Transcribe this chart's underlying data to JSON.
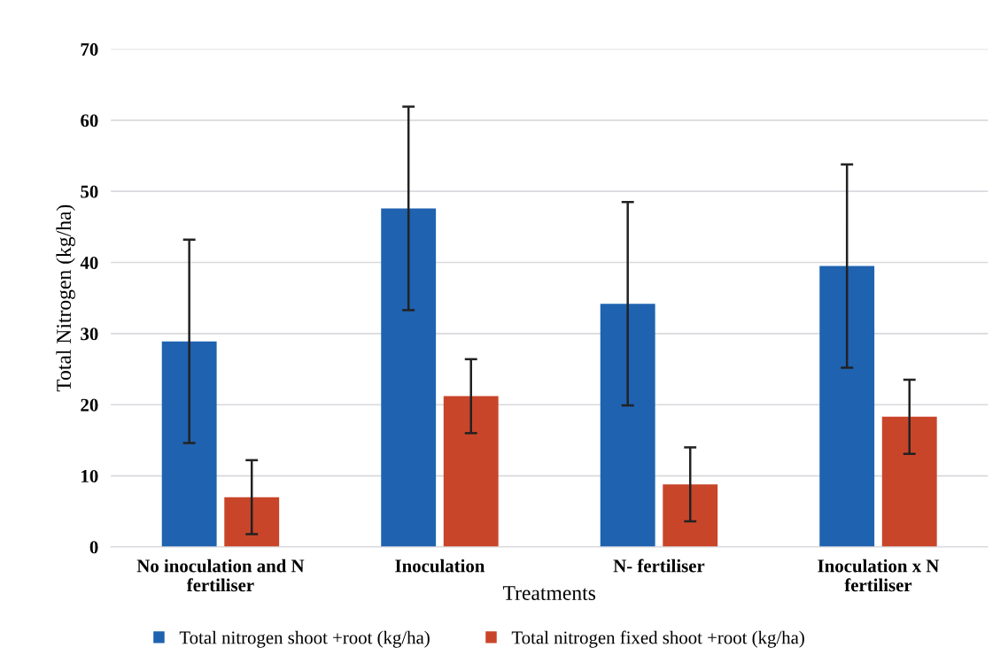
{
  "chart_data": {
    "type": "bar",
    "xlabel": "Treatments",
    "ylabel": "Total Nitrogen (kg/ha)",
    "categories": [
      "No inoculation and N\nfertiliser",
      "Inoculation",
      "N- fertiliser",
      "Inoculation x N\nfertiliser"
    ],
    "series": [
      {
        "name": "Total nitrogen shoot +root (kg/ha)",
        "color": "#1f62b0",
        "values": [
          28.9,
          47.6,
          34.2,
          39.5
        ],
        "errors": [
          14.3,
          14.3,
          14.3,
          14.3
        ]
      },
      {
        "name": "Total nitrogen fixed shoot +root (kg/ha)",
        "color": "#c9452a",
        "values": [
          7.0,
          21.2,
          8.8,
          18.3
        ],
        "errors": [
          5.2,
          5.2,
          5.2,
          5.2
        ]
      }
    ],
    "ylim": [
      0,
      70
    ],
    "yticks": [
      0,
      10,
      20,
      30,
      40,
      50,
      60,
      70
    ],
    "grid": "y",
    "legend": "bottom"
  }
}
